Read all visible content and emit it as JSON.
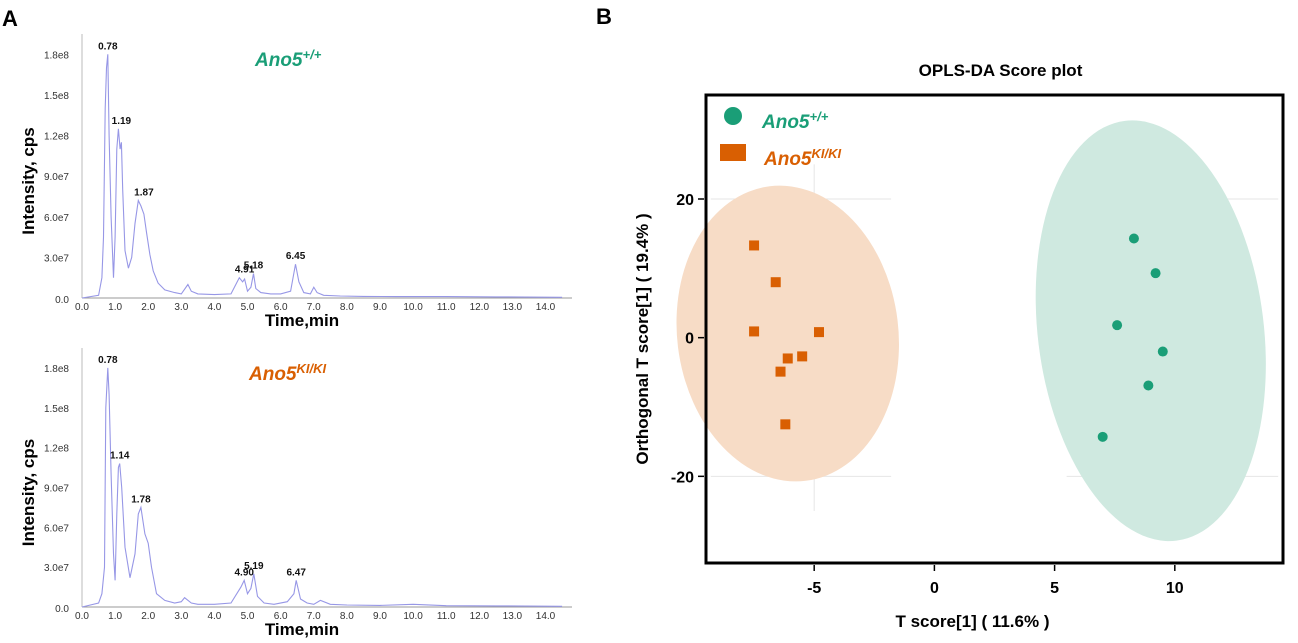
{
  "panels": {
    "a_label": "A",
    "b_label": "B"
  },
  "colors": {
    "wt": "#1a9e77",
    "ki": "#d95f02",
    "trace": "#9797e6",
    "wt_ellipse": "#cfe9e0",
    "ki_ellipse": "#f7dcc6"
  },
  "chart_data": [
    {
      "type": "line",
      "title": "",
      "group": {
        "base": "Ano5",
        "sup": "+/+"
      },
      "xlabel": "Time,min",
      "ylabel": "Intensity, cps",
      "xlim": [
        0,
        14.8
      ],
      "ylim": [
        0,
        195000000.0
      ],
      "x_ticks": [
        "0.0",
        "1.0",
        "2.0",
        "3.0",
        "4.0",
        "5.0",
        "6.0",
        "7.0",
        "8.0",
        "9.0",
        "10.0",
        "11.0",
        "12.0",
        "13.0",
        "14.0"
      ],
      "y_ticks": [
        "3.0e7",
        "6.0e7",
        "9.0e7",
        "1.2e8",
        "1.5e8",
        "1.8e8"
      ],
      "x": [
        0.0,
        0.5,
        0.6,
        0.65,
        0.7,
        0.74,
        0.78,
        0.82,
        0.88,
        0.95,
        1.0,
        1.05,
        1.1,
        1.15,
        1.19,
        1.23,
        1.3,
        1.4,
        1.5,
        1.6,
        1.7,
        1.78,
        1.87,
        1.95,
        2.05,
        2.15,
        2.3,
        2.5,
        2.8,
        3.0,
        3.2,
        3.3,
        3.5,
        4.0,
        4.5,
        4.75,
        4.85,
        4.91,
        5.0,
        5.1,
        5.18,
        5.25,
        5.4,
        5.7,
        6.0,
        6.3,
        6.45,
        6.55,
        6.7,
        6.9,
        7.0,
        7.1,
        7.3,
        7.8,
        8.5,
        9.5,
        11.0,
        12.5,
        14.5
      ],
      "y": [
        0,
        2000000.0,
        15000000.0,
        45000000.0,
        140000000.0,
        170000000.0,
        180000000.0,
        120000000.0,
        60000000.0,
        15000000.0,
        45000000.0,
        110000000.0,
        125000000.0,
        110000000.0,
        115000000.0,
        80000000.0,
        35000000.0,
        22000000.0,
        30000000.0,
        55000000.0,
        72000000.0,
        68000000.0,
        62000000.0,
        48000000.0,
        32000000.0,
        20000000.0,
        11000000.0,
        6000000.0,
        4000000.0,
        3000000.0,
        10000000.0,
        5000000.0,
        3000000.0,
        2500000.0,
        3000000.0,
        15000000.0,
        12000000.0,
        14000000.0,
        5000000.0,
        8000000.0,
        18000000.0,
        7000000.0,
        4000000.0,
        3000000.0,
        3000000.0,
        5000000.0,
        25000000.0,
        12000000.0,
        4000000.0,
        3000000.0,
        8000000.0,
        4000000.0,
        2000000.0,
        1500000.0,
        1200000.0,
        1000000.0,
        1000000.0,
        800000.0,
        500000.0
      ],
      "annotations": [
        {
          "x": 0.78,
          "y": 180000000.0,
          "text": "0.78"
        },
        {
          "x": 1.19,
          "y": 125000000.0,
          "text": "1.19"
        },
        {
          "x": 1.87,
          "y": 72000000.0,
          "text": "1.87"
        },
        {
          "x": 4.91,
          "y": 15000000.0,
          "text": "4.91"
        },
        {
          "x": 5.18,
          "y": 18000000.0,
          "text": "5.18"
        },
        {
          "x": 6.45,
          "y": 25000000.0,
          "text": "6.45"
        }
      ]
    },
    {
      "type": "line",
      "title": "",
      "group": {
        "base": "Ano5",
        "sup": "KI/KI"
      },
      "xlabel": "Time,min",
      "ylabel": "Intensity, cps",
      "xlim": [
        0,
        14.8
      ],
      "ylim": [
        0,
        195000000.0
      ],
      "x_ticks": [
        "0.0",
        "1.0",
        "2.0",
        "3.0",
        "4.0",
        "5.0",
        "6.0",
        "7.0",
        "8.0",
        "9.0",
        "10.0",
        "11.0",
        "12.0",
        "13.0",
        "14.0"
      ],
      "y_ticks": [
        "3.0e7",
        "6.0e7",
        "9.0e7",
        "1.2e8",
        "1.5e8",
        "1.8e8"
      ],
      "x": [
        0.0,
        0.5,
        0.6,
        0.68,
        0.72,
        0.78,
        0.82,
        0.88,
        0.95,
        1.0,
        1.05,
        1.1,
        1.14,
        1.2,
        1.3,
        1.45,
        1.6,
        1.7,
        1.78,
        1.9,
        2.0,
        2.1,
        2.25,
        2.5,
        2.8,
        3.0,
        3.1,
        3.3,
        3.5,
        4.0,
        4.5,
        4.8,
        4.9,
        5.0,
        5.1,
        5.19,
        5.3,
        5.5,
        5.8,
        6.2,
        6.4,
        6.47,
        6.6,
        6.8,
        7.0,
        7.2,
        7.5,
        8.0,
        9.0,
        10.0,
        11.0,
        12.5,
        14.5
      ],
      "y": [
        0,
        3000000.0,
        10000000.0,
        30000000.0,
        150000000.0,
        180000000.0,
        160000000.0,
        100000000.0,
        40000000.0,
        20000000.0,
        70000000.0,
        105000000.0,
        108000000.0,
        90000000.0,
        45000000.0,
        22000000.0,
        40000000.0,
        70000000.0,
        75000000.0,
        55000000.0,
        48000000.0,
        30000000.0,
        10000000.0,
        5000000.0,
        3000000.0,
        4000000.0,
        7000000.0,
        3000000.0,
        2000000.0,
        2000000.0,
        3000000.0,
        15000000.0,
        20000000.0,
        10000000.0,
        14000000.0,
        25000000.0,
        8000000.0,
        3000000.0,
        2000000.0,
        4000000.0,
        10000000.0,
        20000000.0,
        6000000.0,
        3000000.0,
        2000000.0,
        5000000.0,
        2000000.0,
        1500000.0,
        1200000.0,
        2000000.0,
        1000000.0,
        800000.0,
        500000.0
      ],
      "annotations": [
        {
          "x": 0.78,
          "y": 180000000.0,
          "text": "0.78"
        },
        {
          "x": 1.14,
          "y": 108000000.0,
          "text": "1.14"
        },
        {
          "x": 1.78,
          "y": 75000000.0,
          "text": "1.78"
        },
        {
          "x": 4.9,
          "y": 20000000.0,
          "text": "4.90"
        },
        {
          "x": 5.19,
          "y": 25000000.0,
          "text": "5.19"
        },
        {
          "x": 6.47,
          "y": 20000000.0,
          "text": "6.47"
        }
      ]
    },
    {
      "type": "scatter",
      "title": "OPLS-DA Score plot",
      "xlabel": "T score[1] ( 11.6% )",
      "ylabel": "Orthogonal T score[1] ( 19.4% )",
      "xlim": [
        -9.5,
        14.5
      ],
      "ylim": [
        -32.5,
        35
      ],
      "x_ticks": [
        -5,
        0,
        5,
        10
      ],
      "y_ticks": [
        -20,
        0,
        20
      ],
      "grid": true,
      "legend": "top-left",
      "series": [
        {
          "name_base": "Ano5",
          "name_sup": "+/+",
          "marker": "circle",
          "x": [
            8.3,
            9.2,
            7.6,
            9.5,
            8.9,
            7.0
          ],
          "y": [
            14.3,
            9.3,
            1.8,
            -2.0,
            -6.9,
            -14.3
          ],
          "ellipse": {
            "cx": 9.0,
            "cy": 1.0,
            "rx": 4.7,
            "ry": 30.5
          }
        },
        {
          "name_base": "Ano5",
          "name_sup": "KI/KI",
          "marker": "square",
          "x": [
            -7.5,
            -6.6,
            -7.5,
            -4.8,
            -5.5,
            -6.1,
            -6.4,
            -6.2
          ],
          "y": [
            13.3,
            8.0,
            0.9,
            0.8,
            -2.7,
            -3.0,
            -4.9,
            -12.5
          ],
          "ellipse": {
            "cx": -6.1,
            "cy": 0.6,
            "rx": 4.6,
            "ry": 21.4
          }
        }
      ]
    }
  ]
}
